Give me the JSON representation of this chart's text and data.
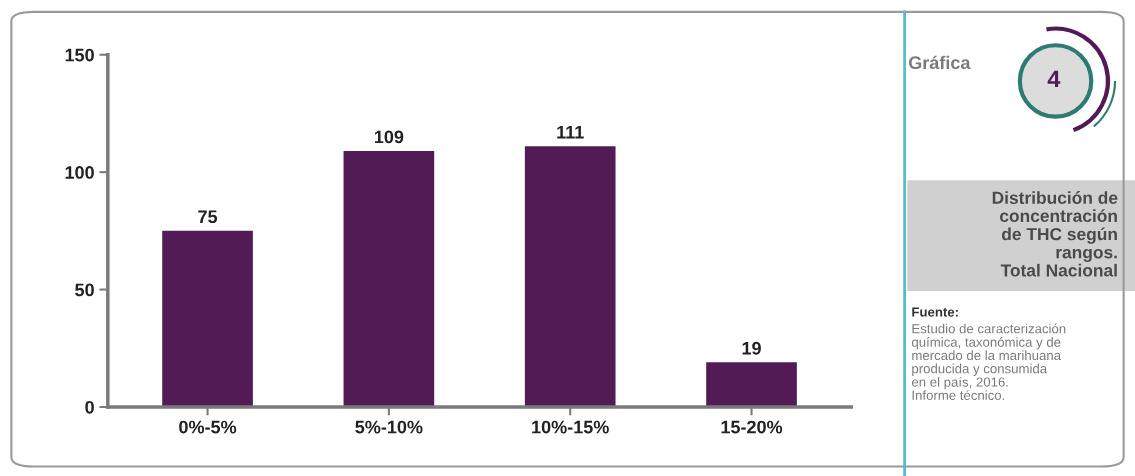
{
  "chart_data": {
    "type": "bar",
    "title": "Distribución de\nconcentración\nde THC según\nrangos.\nTotal Nacional",
    "categories": [
      "0%-5%",
      "5%-10%",
      "10%-15%",
      "15-20%"
    ],
    "values": [
      75,
      109,
      111,
      19
    ],
    "color": "#521b55",
    "ylim": [
      0,
      150
    ],
    "yticks": [
      0,
      50,
      100,
      150
    ],
    "data_labels": true,
    "grid": false,
    "legend": false,
    "annotations": [
      "Gráfica",
      "4",
      "Fuente:",
      "Estudio de caracterización\nquímica, taxonómica y de\nmercado de la marihuana\nproducida y consumida\nen el país, 2016.\nInforme técnico."
    ]
  }
}
